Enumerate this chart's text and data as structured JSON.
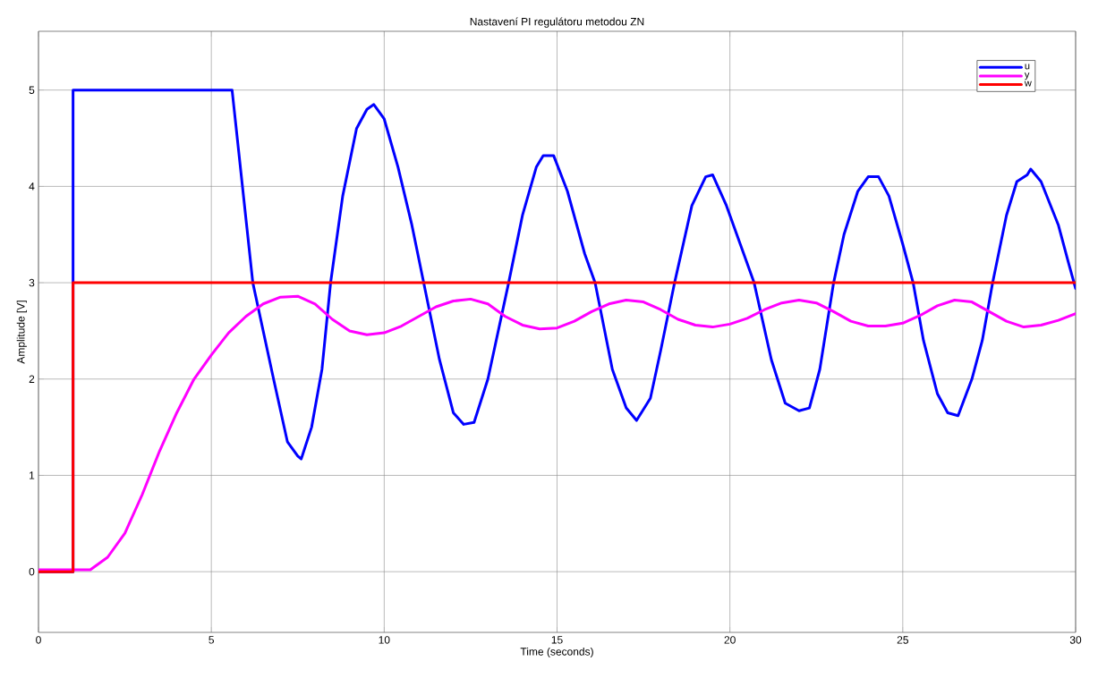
{
  "chart_data": {
    "type": "line",
    "title": "Nastavení PI regulátoru metodou ZN",
    "xlabel": "Time (seconds)",
    "ylabel": "Amplitude [V]",
    "xlim": [
      0,
      30
    ],
    "ylim": [
      -0.63,
      5.61
    ],
    "xticks": [
      0,
      5,
      10,
      15,
      20,
      25,
      30
    ],
    "yticks": [
      0,
      1,
      2,
      3,
      4,
      5
    ],
    "grid": true,
    "legend": "top right",
    "marker": "none",
    "line_style": "solid",
    "series": [
      {
        "name": "u",
        "color": "#0000ff",
        "x": [
          0,
          1,
          1,
          5.6,
          6.2,
          6.8,
          7.2,
          7.5,
          7.6,
          7.9,
          8.2,
          8.45,
          8.8,
          9.2,
          9.5,
          9.7,
          10.0,
          10.4,
          10.8,
          11.2,
          11.6,
          12.0,
          12.3,
          12.6,
          13.0,
          13.6,
          14.0,
          14.4,
          14.6,
          14.9,
          15.3,
          15.8,
          16.1,
          16.6,
          17.0,
          17.3,
          17.7,
          18.0,
          18.4,
          18.9,
          19.3,
          19.5,
          19.9,
          20.3,
          20.7,
          21.2,
          21.6,
          22.0,
          22.3,
          22.6,
          23.0,
          23.3,
          23.7,
          24.0,
          24.3,
          24.6,
          25.0,
          25.3,
          25.6,
          26.0,
          26.3,
          26.6,
          27.0,
          27.3,
          27.6,
          28.0,
          28.3,
          28.6,
          28.7,
          29.0,
          29.5,
          29.8,
          30
        ],
        "values": [
          0,
          0,
          5,
          5,
          3,
          2,
          1.35,
          1.2,
          1.17,
          1.5,
          2.1,
          3,
          3.9,
          4.6,
          4.8,
          4.85,
          4.7,
          4.2,
          3.6,
          2.9,
          2.2,
          1.65,
          1.53,
          1.55,
          2.0,
          3.0,
          3.7,
          4.2,
          4.32,
          4.32,
          3.95,
          3.3,
          3.0,
          2.1,
          1.7,
          1.57,
          1.8,
          2.3,
          3.0,
          3.8,
          4.1,
          4.12,
          3.8,
          3.4,
          3.0,
          2.2,
          1.75,
          1.67,
          1.7,
          2.1,
          3.0,
          3.5,
          3.95,
          4.1,
          4.1,
          3.9,
          3.4,
          3.0,
          2.4,
          1.85,
          1.65,
          1.62,
          2.0,
          2.4,
          3.0,
          3.7,
          4.05,
          4.12,
          4.18,
          4.05,
          3.6,
          3.2,
          2.94
        ]
      },
      {
        "name": "y",
        "color": "#ff00ff",
        "x": [
          0,
          1.5,
          2,
          2.5,
          3,
          3.5,
          4,
          4.5,
          5,
          5.5,
          6,
          6.5,
          7,
          7.5,
          8,
          8.5,
          9,
          9.5,
          10,
          10.5,
          11,
          11.5,
          12,
          12.5,
          13,
          13.5,
          14,
          14.5,
          15,
          15.5,
          16,
          16.5,
          17,
          17.5,
          18,
          18.5,
          19,
          19.5,
          20,
          20.5,
          21,
          21.5,
          22,
          22.5,
          23,
          23.5,
          24,
          24.5,
          25,
          25.5,
          26,
          26.5,
          27,
          27.5,
          28,
          28.5,
          29,
          29.5,
          30
        ],
        "values": [
          0.02,
          0.02,
          0.15,
          0.4,
          0.8,
          1.25,
          1.65,
          2.0,
          2.25,
          2.48,
          2.65,
          2.78,
          2.85,
          2.86,
          2.78,
          2.62,
          2.5,
          2.46,
          2.48,
          2.55,
          2.65,
          2.75,
          2.81,
          2.83,
          2.78,
          2.65,
          2.56,
          2.52,
          2.53,
          2.6,
          2.7,
          2.78,
          2.82,
          2.8,
          2.72,
          2.62,
          2.56,
          2.54,
          2.57,
          2.63,
          2.72,
          2.79,
          2.82,
          2.79,
          2.7,
          2.6,
          2.55,
          2.55,
          2.58,
          2.66,
          2.76,
          2.82,
          2.8,
          2.7,
          2.6,
          2.54,
          2.56,
          2.61,
          2.68
        ]
      },
      {
        "name": "w",
        "color": "#ff0000",
        "x": [
          0,
          1,
          1,
          30
        ],
        "values": [
          0,
          0,
          3,
          3
        ]
      }
    ]
  }
}
